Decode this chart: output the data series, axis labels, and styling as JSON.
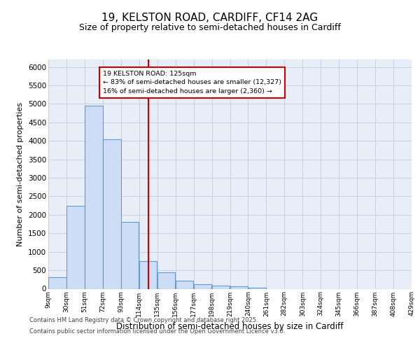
{
  "title": "19, KELSTON ROAD, CARDIFF, CF14 2AG",
  "subtitle": "Size of property relative to semi-detached houses in Cardiff",
  "xlabel": "Distribution of semi-detached houses by size in Cardiff",
  "ylabel": "Number of semi-detached properties",
  "bin_labels": [
    "9sqm",
    "30sqm",
    "51sqm",
    "72sqm",
    "93sqm",
    "114sqm",
    "135sqm",
    "156sqm",
    "177sqm",
    "198sqm",
    "219sqm",
    "240sqm",
    "261sqm",
    "282sqm",
    "303sqm",
    "324sqm",
    "345sqm",
    "366sqm",
    "387sqm",
    "408sqm",
    "429sqm"
  ],
  "bar_heights": [
    310,
    2250,
    4950,
    4050,
    1800,
    750,
    450,
    210,
    130,
    90,
    60,
    30,
    0,
    0,
    0,
    0,
    0,
    0,
    0,
    0
  ],
  "bar_color": "#ccddf5",
  "bar_edge_color": "#6699cc",
  "property_label": "19 KELSTON ROAD: 125sqm",
  "annotation_line1": "← 83% of semi-detached houses are smaller (12,327)",
  "annotation_line2": "16% of semi-detached houses are larger (2,360) →",
  "vline_color": "#cc0000",
  "annotation_box_edge": "#cc0000",
  "ylim": [
    0,
    6200
  ],
  "yticks": [
    0,
    500,
    1000,
    1500,
    2000,
    2500,
    3000,
    3500,
    4000,
    4500,
    5000,
    5500,
    6000
  ],
  "grid_color": "#c8cfe0",
  "bg_color": "#e8eef8",
  "footer1": "Contains HM Land Registry data © Crown copyright and database right 2025.",
  "footer2": "Contains public sector information licensed under the Open Government Licence v3.0."
}
